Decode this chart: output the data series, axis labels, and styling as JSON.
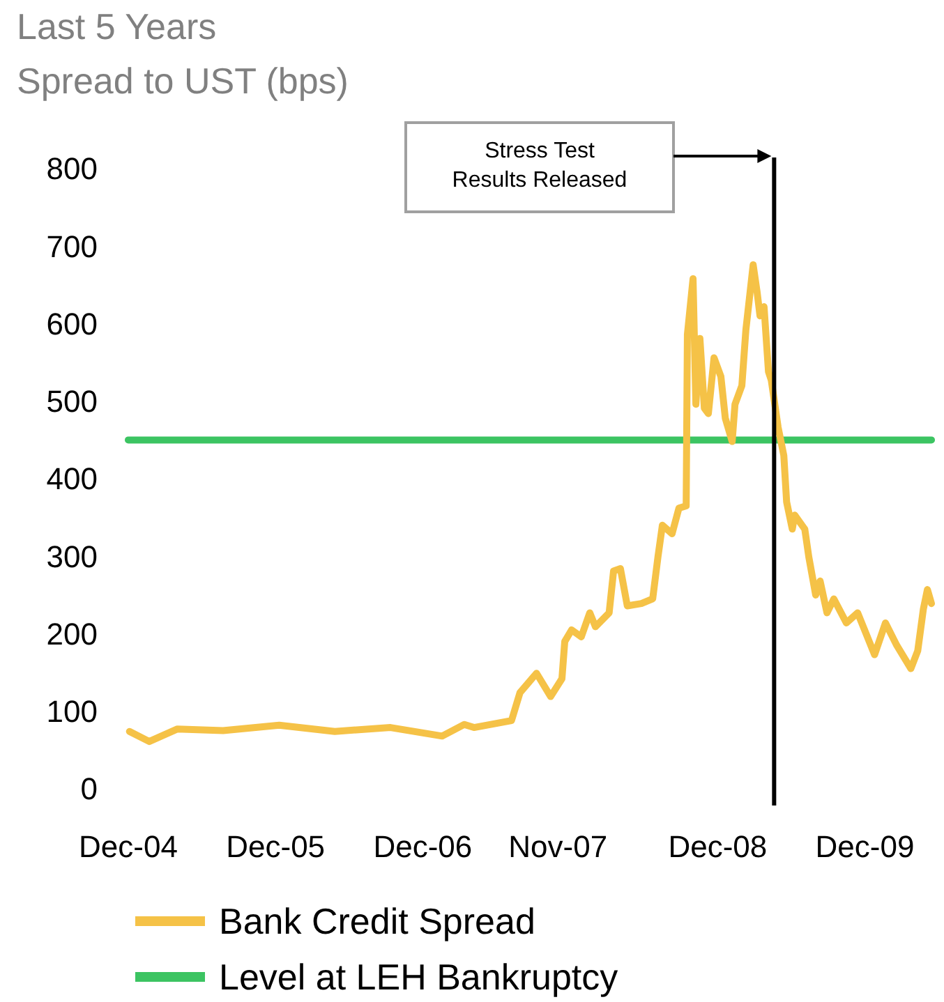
{
  "chart_data": {
    "type": "line",
    "title": "Last 5 Years",
    "subtitle": "Spread to UST (bps)",
    "xlim": [
      "2004-12-01",
      "2010-05-15"
    ],
    "xticks": [
      {
        "value": "2004-12-01",
        "label": "Dec-04"
      },
      {
        "value": "2005-12-01",
        "label": "Dec-05"
      },
      {
        "value": "2006-12-01",
        "label": "Dec-06"
      },
      {
        "value": "2007-11-01",
        "label": "Nov-07"
      },
      {
        "value": "2008-12-01",
        "label": "Dec-08"
      },
      {
        "value": "2009-12-01",
        "label": "Dec-09"
      }
    ],
    "ylim": [
      0,
      800
    ],
    "yticks": [
      0,
      100,
      200,
      300,
      400,
      500,
      600,
      700,
      800
    ],
    "grid": false,
    "legend": "bottom",
    "series": [
      {
        "name": "Bank Credit Spread",
        "color": "#f5c247",
        "x": [
          "2004-12-04",
          "2005-01-22",
          "2005-04-01",
          "2005-07-24",
          "2005-12-10",
          "2006-04-27",
          "2006-09-12",
          "2007-01-18",
          "2007-03-14",
          "2007-04-07",
          "2007-07-09",
          "2007-07-30",
          "2007-09-09",
          "2007-10-14",
          "2007-11-11",
          "2007-11-18",
          "2007-12-05",
          "2007-12-29",
          "2008-01-19",
          "2008-02-02",
          "2008-03-07",
          "2008-03-18",
          "2008-04-04",
          "2008-04-21",
          "2008-05-26",
          "2008-06-23",
          "2008-07-06",
          "2008-07-17",
          "2008-08-10",
          "2008-08-27",
          "2008-09-14",
          "2008-09-17",
          "2008-10-01",
          "2008-10-08",
          "2008-10-18",
          "2008-10-29",
          "2008-11-08",
          "2008-11-22",
          "2008-12-09",
          "2008-12-20",
          "2009-01-06",
          "2009-01-13",
          "2009-01-30",
          "2009-02-09",
          "2009-02-27",
          "2009-03-09",
          "2009-03-16",
          "2009-03-26",
          "2009-04-06",
          "2009-04-13",
          "2009-04-30",
          "2009-05-14",
          "2009-05-21",
          "2009-06-04",
          "2009-06-10",
          "2009-07-05",
          "2009-07-15",
          "2009-08-01",
          "2009-08-12",
          "2009-08-29",
          "2009-09-15",
          "2009-10-16",
          "2009-11-13",
          "2009-12-25",
          "2010-01-21",
          "2010-02-18",
          "2010-03-25",
          "2010-04-11",
          "2010-04-25",
          "2010-05-05",
          "2010-05-15"
        ],
        "values": [
          74,
          61,
          77,
          75,
          82,
          74,
          79,
          68,
          83,
          79,
          88,
          124,
          149,
          119,
          142,
          190,
          205,
          196,
          227,
          209,
          227,
          281,
          284,
          236,
          239,
          245,
          299,
          340,
          329,
          362,
          365,
          586,
          658,
          496,
          581,
          491,
          484,
          556,
          532,
          478,
          448,
          496,
          520,
          592,
          676,
          640,
          610,
          622,
          538,
          527,
          466,
          430,
          370,
          335,
          353,
          335,
          299,
          250,
          268,
          227,
          245,
          214,
          227,
          173,
          214,
          185,
          155,
          178,
          232,
          257,
          239
        ]
      },
      {
        "name": "Level at LEH Bankruptcy",
        "color": "#3cc462",
        "x": [
          "2004-12-01",
          "2010-05-15"
        ],
        "values": [
          450,
          450
        ]
      }
    ],
    "annotations": [
      "Stress Test\nResults Released"
    ],
    "ref_lines": [
      {
        "axis": "x",
        "value": "2009-04-20",
        "color": "#000000"
      }
    ]
  }
}
